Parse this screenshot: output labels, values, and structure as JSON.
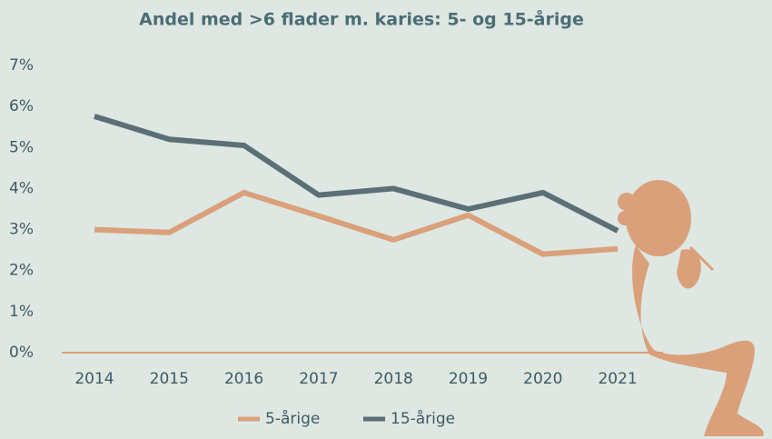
{
  "chart_data": {
    "type": "line",
    "title": "Andel med >6 flader m. karies: 5- og 15-årige",
    "categories": [
      "2014",
      "2015",
      "2016",
      "2017",
      "2018",
      "2019",
      "2020",
      "2021"
    ],
    "series": [
      {
        "name": "5-årige",
        "color": "#d9a07a",
        "values": [
          3.0,
          2.93,
          3.9,
          3.33,
          2.75,
          3.35,
          2.4,
          2.53
        ]
      },
      {
        "name": "15-årige",
        "color": "#5b6f76",
        "values": [
          5.76,
          5.2,
          5.05,
          3.84,
          4.0,
          3.5,
          3.9,
          2.97
        ]
      }
    ],
    "ylim": [
      0,
      7
    ],
    "yticks": [
      {
        "value": 0,
        "label": "0%"
      },
      {
        "value": 1,
        "label": "1%"
      },
      {
        "value": 2,
        "label": "2%"
      },
      {
        "value": 3,
        "label": "3%"
      },
      {
        "value": 4,
        "label": "4%"
      },
      {
        "value": 5,
        "label": "5%"
      },
      {
        "value": 6,
        "label": "6%"
      },
      {
        "value": 7,
        "label": "7%"
      }
    ],
    "grid": false,
    "legend": "bottom"
  }
}
